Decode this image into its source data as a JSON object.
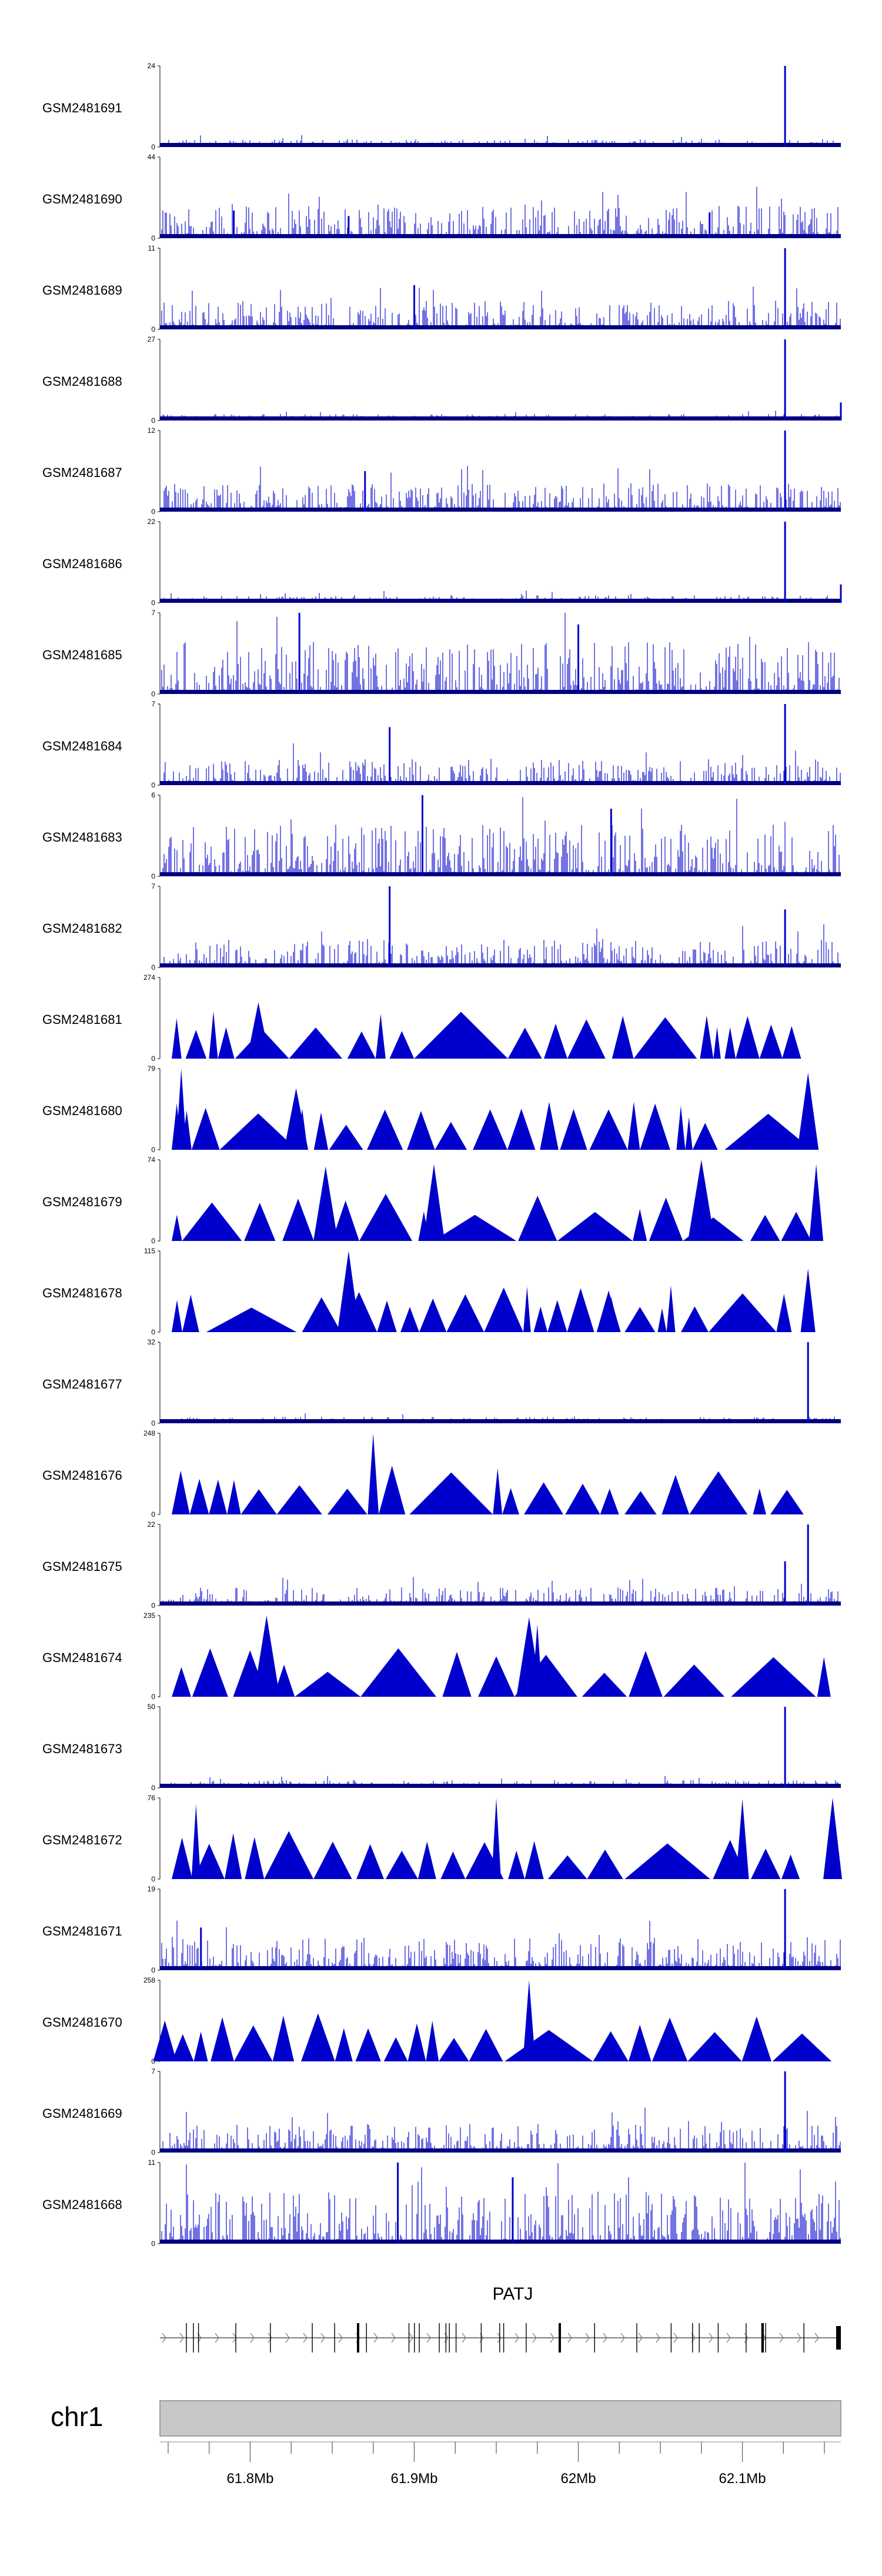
{
  "chart_data": {
    "type": "genome-tracks",
    "chromosome": "chr1",
    "region_mb": [
      61.745,
      62.16
    ],
    "colors": {
      "signal": "#0000cc",
      "baseline": "#000080",
      "ideogram": "#c8c8c8",
      "ideogram_border": "#888888"
    },
    "tracks": [
      {
        "name": "GSM2481691",
        "ymax": 24,
        "ymin": 0,
        "style": "bars",
        "peaks": [
          [
            62.126,
            24
          ]
        ],
        "level": 0.06
      },
      {
        "name": "GSM2481690",
        "ymax": 44,
        "ymin": 0,
        "style": "bars",
        "peaks": [
          [
            61.79,
            15
          ],
          [
            61.86,
            12
          ],
          [
            62.08,
            14
          ]
        ],
        "level": 0.25
      },
      {
        "name": "GSM2481689",
        "ymax": 11,
        "ymin": 0,
        "style": "bars",
        "peaks": [
          [
            62.126,
            11
          ],
          [
            61.9,
            6
          ]
        ],
        "level": 0.22
      },
      {
        "name": "GSM2481688",
        "ymax": 27,
        "ymin": 0,
        "style": "bars",
        "peaks": [
          [
            62.126,
            27
          ],
          [
            62.16,
            6
          ]
        ],
        "level": 0.05
      },
      {
        "name": "GSM2481687",
        "ymax": 12,
        "ymin": 0,
        "style": "bars",
        "peaks": [
          [
            62.126,
            12
          ],
          [
            61.87,
            6
          ]
        ],
        "level": 0.22
      },
      {
        "name": "GSM2481686",
        "ymax": 22,
        "ymin": 0,
        "style": "bars",
        "peaks": [
          [
            62.126,
            22
          ],
          [
            62.16,
            5
          ]
        ],
        "level": 0.06
      },
      {
        "name": "GSM2481685",
        "ymax": 7,
        "ymin": 0,
        "style": "bars",
        "peaks": [
          [
            61.83,
            7
          ],
          [
            62.0,
            6
          ]
        ],
        "level": 0.4
      },
      {
        "name": "GSM2481684",
        "ymax": 7,
        "ymin": 0,
        "style": "bars",
        "peaks": [
          [
            62.126,
            7
          ],
          [
            61.885,
            5
          ]
        ],
        "level": 0.2
      },
      {
        "name": "GSM2481683",
        "ymax": 6,
        "ymin": 0,
        "style": "bars",
        "peaks": [
          [
            61.905,
            6
          ],
          [
            62.02,
            5
          ]
        ],
        "level": 0.4
      },
      {
        "name": "GSM2481682",
        "ymax": 7,
        "ymin": 0,
        "style": "bars",
        "peaks": [
          [
            61.885,
            7
          ],
          [
            62.126,
            5
          ]
        ],
        "level": 0.22
      },
      {
        "name": "GSM2481681",
        "ymax": 274,
        "ymin": 0,
        "style": "triangles",
        "peaks": [
          [
            61.805,
            190
          ],
          [
            62.13,
            110
          ]
        ]
      },
      {
        "name": "GSM2481680",
        "ymax": 79,
        "ymin": 0,
        "style": "triangles",
        "peaks": [
          [
            61.758,
            79
          ],
          [
            62.14,
            75
          ],
          [
            61.828,
            60
          ]
        ]
      },
      {
        "name": "GSM2481679",
        "ymax": 74,
        "ymin": 0,
        "style": "triangles",
        "peaks": [
          [
            62.075,
            74
          ],
          [
            61.912,
            70
          ],
          [
            62.145,
            70
          ],
          [
            61.846,
            68
          ]
        ]
      },
      {
        "name": "GSM2481678",
        "ymax": 115,
        "ymin": 0,
        "style": "triangles",
        "peaks": [
          [
            61.86,
            115
          ],
          [
            62.14,
            90
          ],
          [
            62.02,
            50
          ]
        ]
      },
      {
        "name": "GSM2481677",
        "ymax": 32,
        "ymin": 0,
        "style": "bars",
        "peaks": [
          [
            62.14,
            32
          ]
        ],
        "level": 0.05
      },
      {
        "name": "GSM2481676",
        "ymax": 248,
        "ymin": 0,
        "style": "triangles",
        "peaks": [
          [
            61.875,
            248
          ]
        ]
      },
      {
        "name": "GSM2481675",
        "ymax": 22,
        "ymin": 0,
        "style": "bars",
        "peaks": [
          [
            62.14,
            22
          ],
          [
            62.126,
            12
          ]
        ],
        "level": 0.14
      },
      {
        "name": "GSM2481674",
        "ymax": 235,
        "ymin": 0,
        "style": "triangles",
        "peaks": [
          [
            61.81,
            235
          ],
          [
            61.97,
            230
          ],
          [
            61.975,
            210
          ]
        ]
      },
      {
        "name": "GSM2481673",
        "ymax": 50,
        "ymin": 0,
        "style": "bars",
        "peaks": [
          [
            62.126,
            50
          ]
        ],
        "level": 0.06
      },
      {
        "name": "GSM2481672",
        "ymax": 76,
        "ymin": 0,
        "style": "triangles",
        "peaks": [
          [
            61.95,
            76
          ],
          [
            62.155,
            76
          ],
          [
            62.1,
            75
          ],
          [
            61.767,
            70
          ]
        ]
      },
      {
        "name": "GSM2481671",
        "ymax": 19,
        "ymin": 0,
        "style": "bars",
        "peaks": [
          [
            62.126,
            19
          ],
          [
            61.77,
            10
          ]
        ],
        "level": 0.25
      },
      {
        "name": "GSM2481670",
        "ymax": 258,
        "ymin": 0,
        "style": "triangles",
        "peaks": [
          [
            61.97,
            258
          ],
          [
            61.748,
            130
          ]
        ]
      },
      {
        "name": "GSM2481669",
        "ymax": 7,
        "ymin": 0,
        "style": "bars",
        "peaks": [
          [
            62.126,
            7
          ]
        ],
        "level": 0.22
      },
      {
        "name": "GSM2481668",
        "ymax": 11,
        "ymin": 0,
        "style": "bars",
        "peaks": [
          [
            61.89,
            11
          ],
          [
            61.96,
            9
          ]
        ],
        "level": 0.4
      }
    ],
    "gene": {
      "name": "PATJ",
      "strand": "+"
    },
    "axis": {
      "ticks": [
        61.8,
        61.9,
        62.0,
        62.1
      ],
      "tick_labels": [
        "61.8Mb",
        "61.9Mb",
        "62Mb",
        "62.1Mb"
      ]
    }
  }
}
